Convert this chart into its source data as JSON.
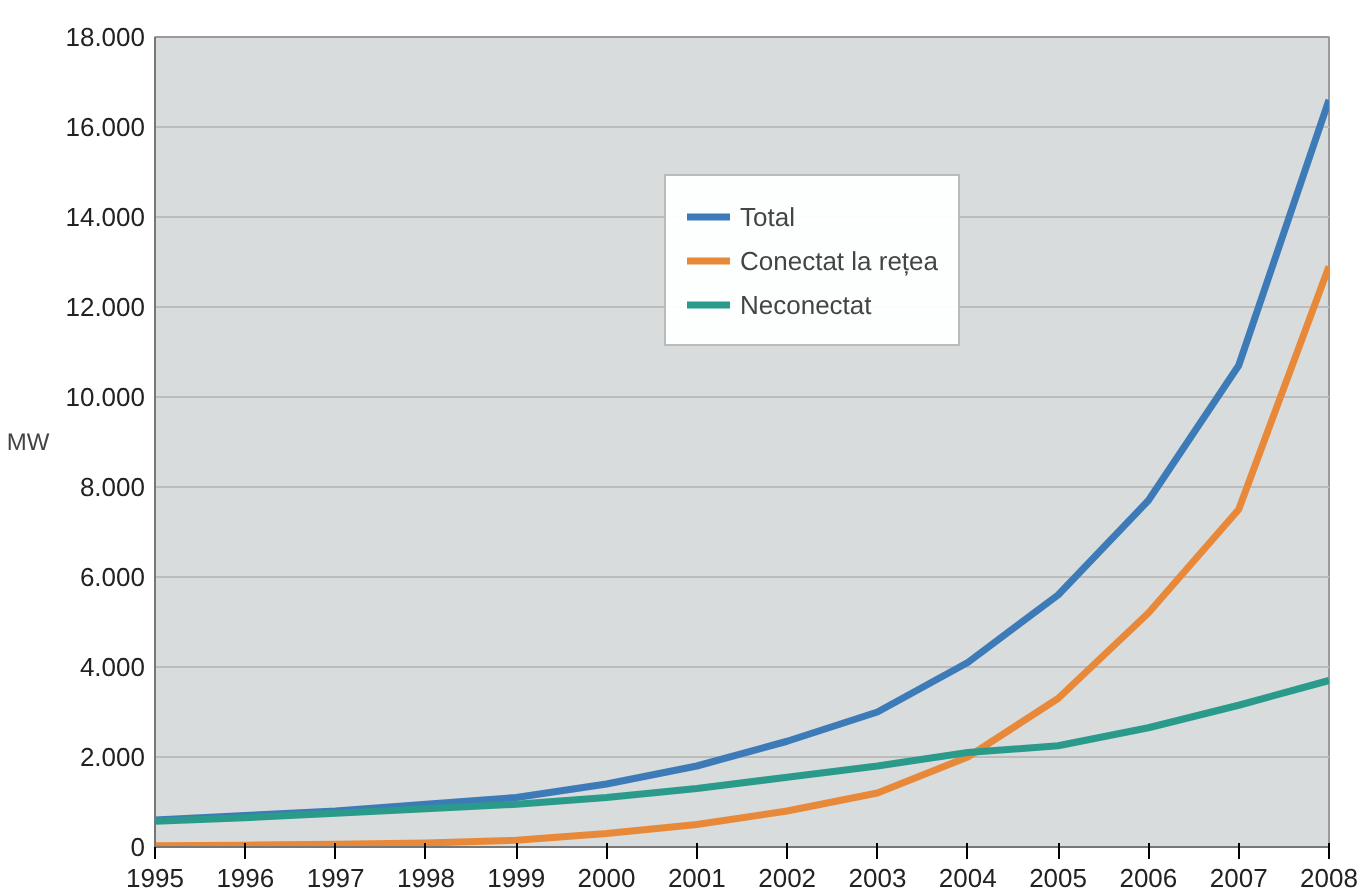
{
  "chart_data": {
    "type": "line",
    "ylabel": "MW",
    "x": [
      1995,
      1996,
      1997,
      1998,
      1999,
      2000,
      2001,
      2002,
      2003,
      2004,
      2005,
      2006,
      2007,
      2008
    ],
    "series": [
      {
        "name": "Total",
        "color": "#3d7ab8",
        "values": [
          600,
          700,
          800,
          950,
          1100,
          1400,
          1800,
          2350,
          3000,
          4100,
          5600,
          7700,
          10700,
          16600
        ]
      },
      {
        "name": "Conectat la rețea",
        "color": "#e8893a",
        "values": [
          30,
          40,
          60,
          90,
          150,
          300,
          500,
          800,
          1200,
          2000,
          3300,
          5200,
          7500,
          12900
        ]
      },
      {
        "name": "Neconectat",
        "color": "#2a9a8a",
        "values": [
          570,
          650,
          750,
          850,
          950,
          1100,
          1300,
          1550,
          1800,
          2100,
          2250,
          2650,
          3150,
          3700
        ]
      }
    ],
    "xlim": [
      1995,
      2008
    ],
    "xticks": [
      1995,
      1996,
      1997,
      1998,
      1999,
      2000,
      2001,
      2002,
      2003,
      2004,
      2005,
      2006,
      2007,
      2008
    ],
    "ylim": [
      0,
      18000
    ],
    "yticks": [
      0,
      {
        "value": 2000,
        "label": "2.000"
      },
      {
        "value": 4000,
        "label": "4.000"
      },
      {
        "value": 6000,
        "label": "6.000"
      },
      {
        "value": 8000,
        "label": "8.000"
      },
      {
        "value": 10000,
        "label": "10.000"
      },
      {
        "value": 12000,
        "label": "12.000"
      },
      {
        "value": 14000,
        "label": "14.000"
      },
      {
        "value": 16000,
        "label": "16.000"
      },
      {
        "value": 18000,
        "label": "18.000"
      }
    ],
    "grid": "y",
    "legend": "top right",
    "marker": "none",
    "line_style": "solid"
  }
}
